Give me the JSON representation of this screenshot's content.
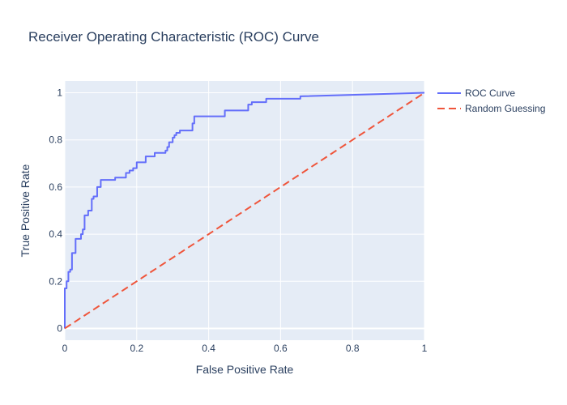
{
  "chart_data": {
    "type": "line",
    "title": "Receiver Operating Characteristic (ROC) Curve",
    "xlabel": "False Positive Rate",
    "ylabel": "True Positive Rate",
    "xlim": [
      0,
      1
    ],
    "ylim": [
      -0.05,
      1.05
    ],
    "x_ticks": [
      0,
      0.2,
      0.4,
      0.6,
      0.8,
      1
    ],
    "x_tick_labels": [
      "0",
      "0.2",
      "0.4",
      "0.6",
      "0.8",
      "1"
    ],
    "y_ticks": [
      0,
      0.2,
      0.4,
      0.6,
      0.8,
      1
    ],
    "y_tick_labels": [
      "0",
      "0.2",
      "0.4",
      "0.6",
      "0.8",
      "1"
    ],
    "grid": true,
    "legend_position": "top-right outside",
    "plot_background": "#e5ecf6",
    "series": [
      {
        "name": "ROC Curve",
        "style": "solid",
        "color": "#636efa",
        "x": [
          0,
          0,
          0.005,
          0.005,
          0.01,
          0.01,
          0.015,
          0.015,
          0.02,
          0.02,
          0.03,
          0.03,
          0.045,
          0.045,
          0.05,
          0.05,
          0.055,
          0.055,
          0.065,
          0.065,
          0.075,
          0.075,
          0.08,
          0.08,
          0.09,
          0.09,
          0.1,
          0.1,
          0.105,
          0.105,
          0.14,
          0.14,
          0.17,
          0.17,
          0.18,
          0.18,
          0.19,
          0.19,
          0.2,
          0.2,
          0.225,
          0.225,
          0.25,
          0.25,
          0.28,
          0.28,
          0.285,
          0.285,
          0.29,
          0.29,
          0.3,
          0.3,
          0.305,
          0.305,
          0.31,
          0.31,
          0.32,
          0.32,
          0.355,
          0.355,
          0.36,
          0.36,
          0.37,
          0.37,
          0.445,
          0.445,
          0.51,
          0.51,
          0.52,
          0.52,
          0.56,
          0.56,
          0.655,
          0.655,
          1
        ],
        "y": [
          0,
          0.17,
          0.17,
          0.2,
          0.2,
          0.24,
          0.24,
          0.25,
          0.25,
          0.32,
          0.32,
          0.38,
          0.38,
          0.4,
          0.4,
          0.42,
          0.42,
          0.48,
          0.48,
          0.5,
          0.5,
          0.55,
          0.55,
          0.56,
          0.56,
          0.6,
          0.6,
          0.63,
          0.63,
          0.63,
          0.63,
          0.64,
          0.64,
          0.66,
          0.66,
          0.67,
          0.67,
          0.68,
          0.68,
          0.705,
          0.705,
          0.73,
          0.73,
          0.745,
          0.745,
          0.755,
          0.755,
          0.77,
          0.77,
          0.79,
          0.79,
          0.81,
          0.81,
          0.82,
          0.82,
          0.83,
          0.83,
          0.84,
          0.84,
          0.87,
          0.87,
          0.9,
          0.9,
          0.9,
          0.9,
          0.925,
          0.925,
          0.95,
          0.95,
          0.96,
          0.96,
          0.975,
          0.975,
          0.985,
          1
        ]
      },
      {
        "name": "Random Guessing",
        "style": "dash",
        "color": "#ef553b",
        "x": [
          0,
          1
        ],
        "y": [
          0,
          1
        ]
      }
    ]
  }
}
